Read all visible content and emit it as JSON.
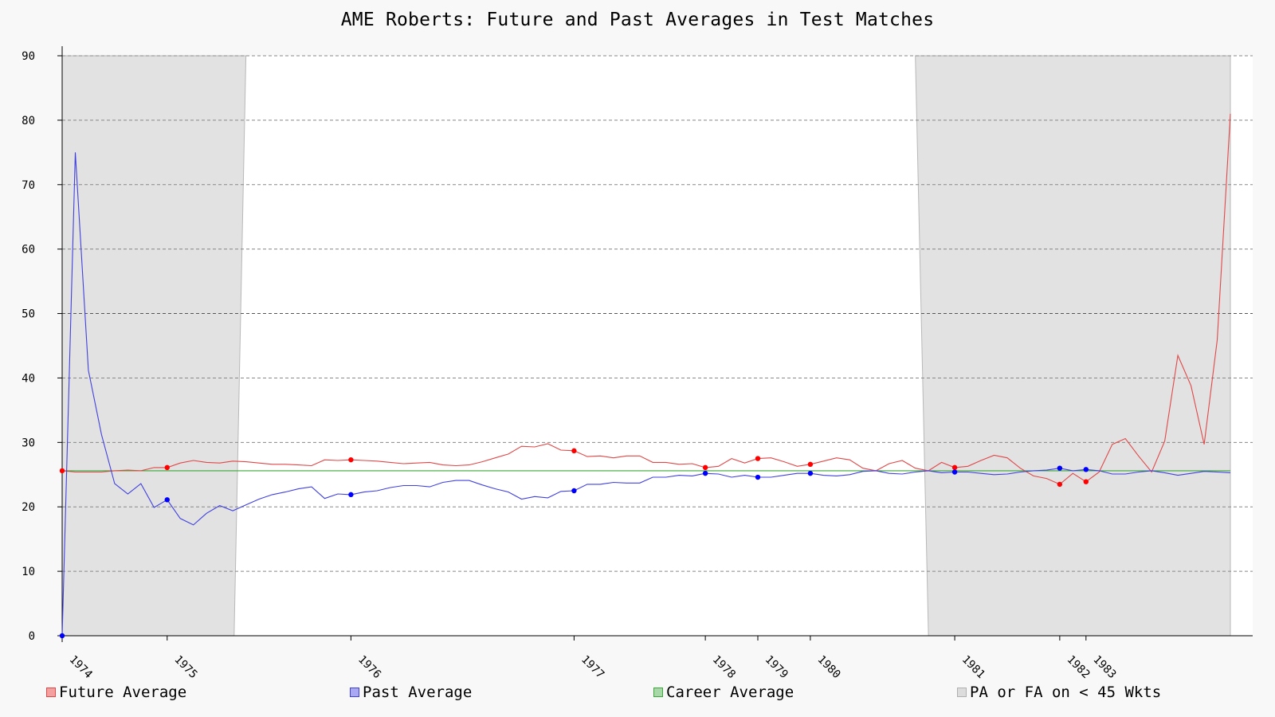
{
  "chart_data": {
    "type": "line",
    "title": "AME Roberts: Future and Past Averages in Test Matches",
    "xlabel": "",
    "ylabel": "",
    "ylim": [
      0,
      90
    ],
    "yticks": [
      0,
      10,
      20,
      30,
      40,
      50,
      60,
      70,
      80,
      90
    ],
    "grid": true,
    "legend_placement": "bottom",
    "match_count": 90,
    "xticks": [
      {
        "label": "1974",
        "match": 1
      },
      {
        "label": "1975",
        "match": 9
      },
      {
        "label": "1976",
        "match": 23
      },
      {
        "label": "1977",
        "match": 40
      },
      {
        "label": "1978",
        "match": 50
      },
      {
        "label": "1979",
        "match": 54
      },
      {
        "label": "1980",
        "match": 58
      },
      {
        "label": "1981",
        "match": 69
      },
      {
        "label": "1982",
        "match": 77
      },
      {
        "label": "1983",
        "match": 79
      }
    ],
    "shaded_regions": [
      {
        "start": 1,
        "end": 14.1,
        "start_end": 15
      },
      {
        "start": 66,
        "end": 90,
        "start_end": 67
      }
    ],
    "series": [
      {
        "name": "Future Average",
        "color": "#e04848",
        "values": [
          25.6,
          25.4,
          25.4,
          25.4,
          25.6,
          25.7,
          25.6,
          26.1,
          26.1,
          26.8,
          27.2,
          26.9,
          26.8,
          27.1,
          27.0,
          26.8,
          26.6,
          26.6,
          26.5,
          26.4,
          27.3,
          27.2,
          27.3,
          27.2,
          27.1,
          26.9,
          26.7,
          26.8,
          26.9,
          26.5,
          26.4,
          26.5,
          27.0,
          27.6,
          28.2,
          29.4,
          29.3,
          29.8,
          28.8,
          28.7,
          27.8,
          27.9,
          27.6,
          27.9,
          27.9,
          26.9,
          26.9,
          26.6,
          26.7,
          26.1,
          26.3,
          27.5,
          26.8,
          27.5,
          27.6,
          27.0,
          26.3,
          26.6,
          27.1,
          27.6,
          27.3,
          26.0,
          25.6,
          26.7,
          27.2,
          26.0,
          25.6,
          26.9,
          26.1,
          26.3,
          27.2,
          28.0,
          27.6,
          26.0,
          24.8,
          24.4,
          23.5,
          25.2,
          23.9,
          25.4,
          29.7,
          30.6,
          27.9,
          25.4,
          30.2,
          43.5,
          38.8,
          29.7,
          45.9,
          81.0
        ]
      },
      {
        "name": "Past Average",
        "color": "#4040e0",
        "values": [
          0.0,
          75.0,
          41.2,
          31.2,
          23.6,
          22.0,
          23.6,
          19.9,
          21.1,
          18.2,
          17.2,
          19.0,
          20.2,
          19.4,
          20.3,
          21.2,
          21.9,
          22.3,
          22.8,
          23.1,
          21.3,
          22.0,
          21.9,
          22.3,
          22.5,
          23.0,
          23.3,
          23.3,
          23.1,
          23.8,
          24.1,
          24.1,
          23.4,
          22.8,
          22.3,
          21.2,
          21.6,
          21.4,
          22.4,
          22.5,
          23.5,
          23.5,
          23.8,
          23.7,
          23.7,
          24.6,
          24.6,
          24.9,
          24.8,
          25.2,
          25.1,
          24.6,
          24.9,
          24.6,
          24.6,
          24.9,
          25.2,
          25.2,
          24.9,
          24.8,
          25.0,
          25.5,
          25.6,
          25.2,
          25.1,
          25.4,
          25.6,
          25.3,
          25.4,
          25.4,
          25.2,
          25.0,
          25.1,
          25.4,
          25.6,
          25.7,
          26.0,
          25.6,
          25.8,
          25.6,
          25.1,
          25.1,
          25.4,
          25.6,
          25.3,
          24.9,
          25.2,
          25.5,
          25.4,
          25.3
        ]
      },
      {
        "name": "Career Average",
        "color": "#3aa83a",
        "constant": 25.6
      },
      {
        "name": "PA or FA on < 45 Wkts",
        "color": "#d8d8d8"
      }
    ]
  }
}
